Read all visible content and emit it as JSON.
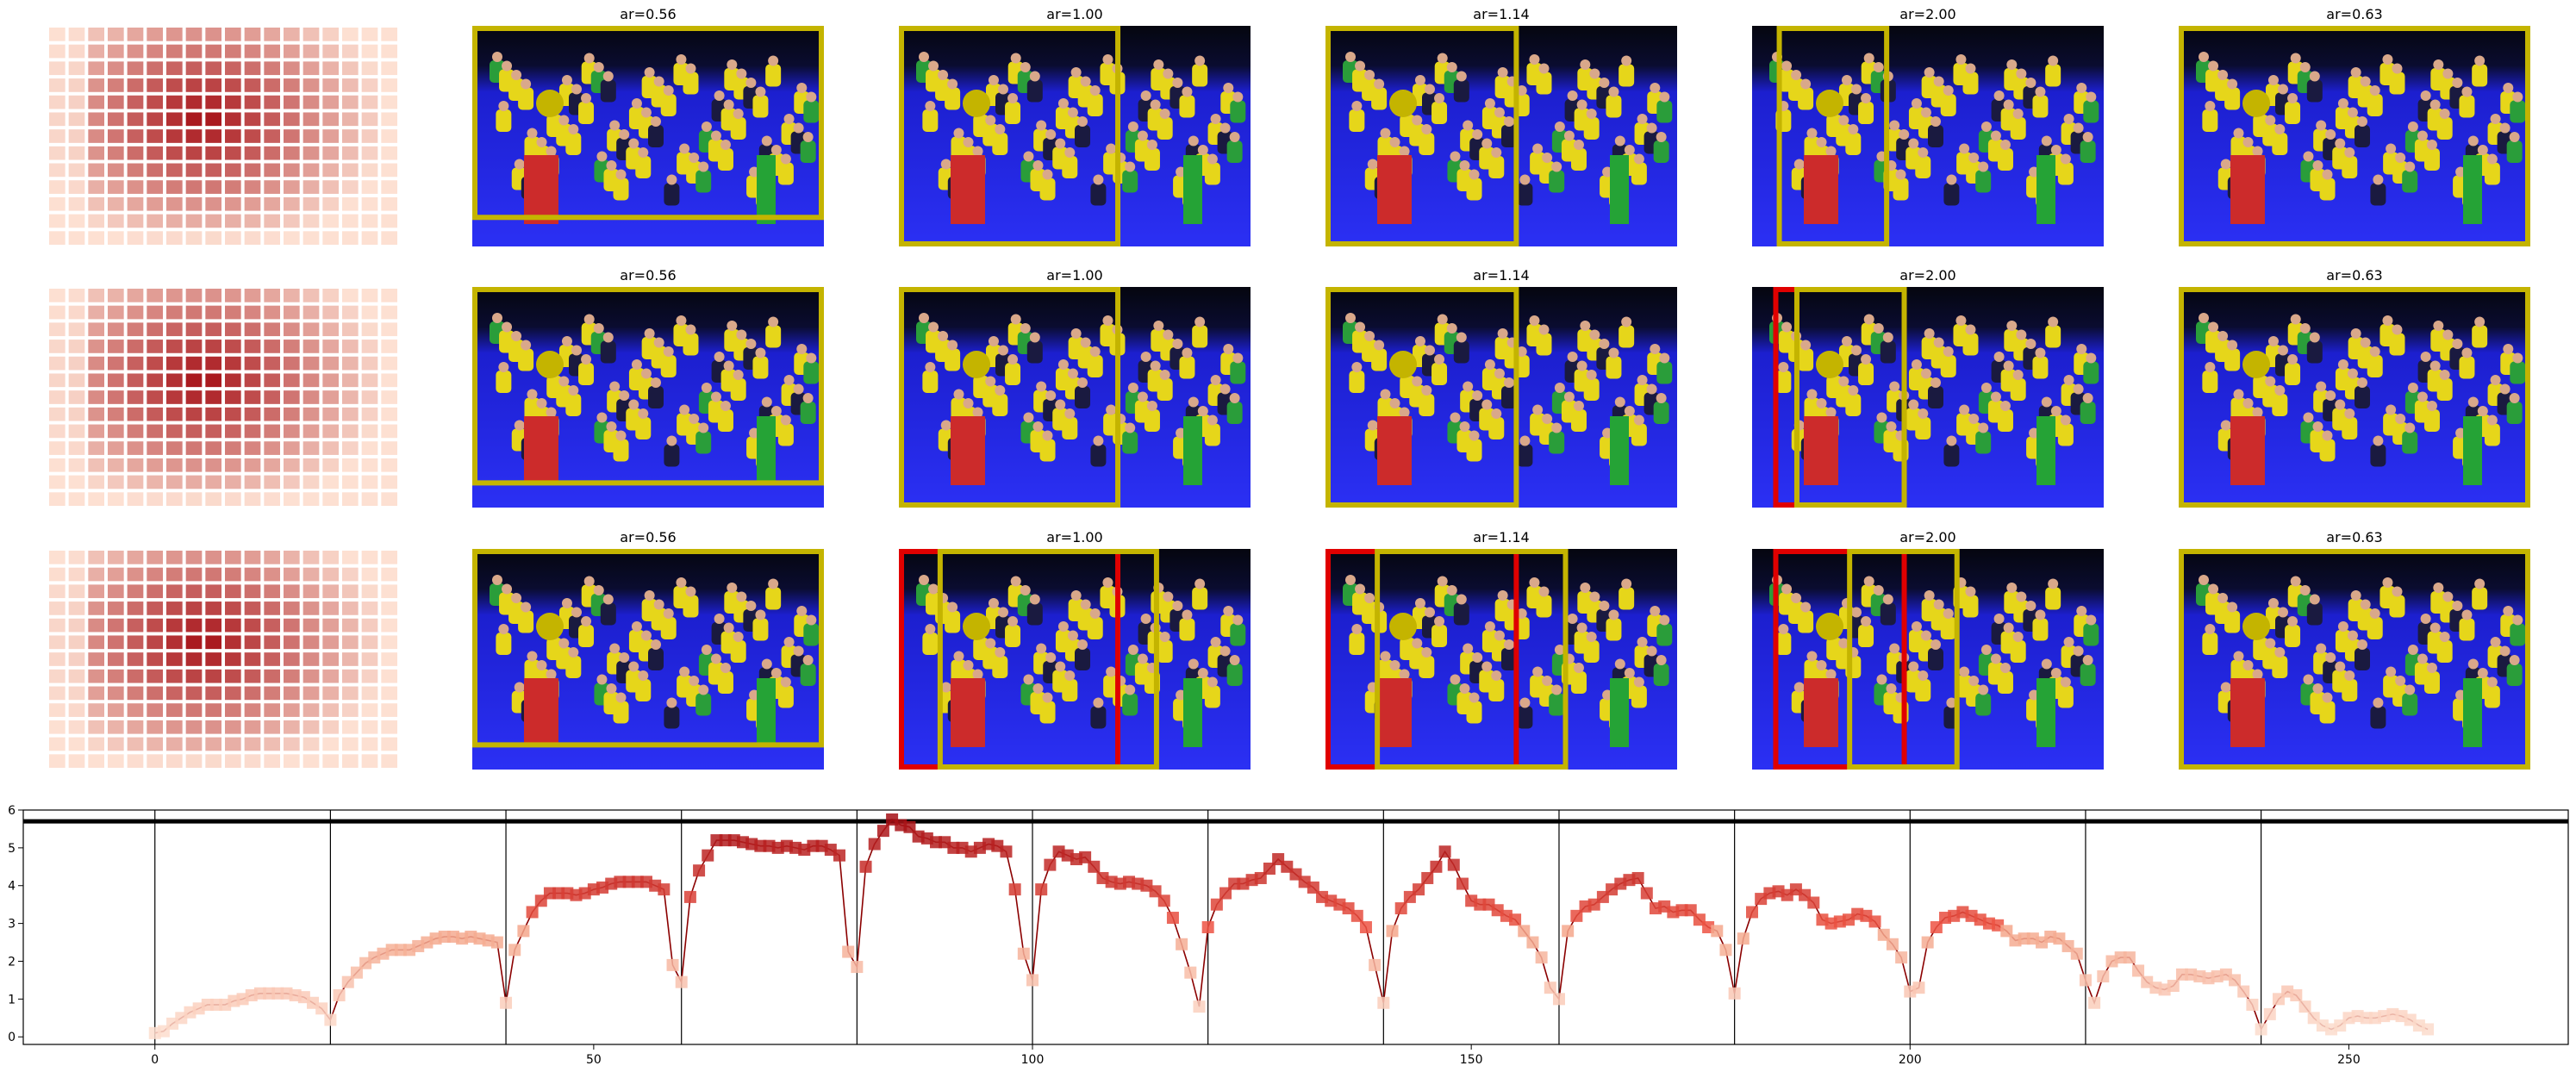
{
  "colors": {
    "box_yellow": "#c4b400",
    "box_red": "#e00000",
    "line_dark": "#8b0000",
    "marker_hi": "#b22222",
    "marker_mid": "#ee5544",
    "marker_lo": "#f4a58a",
    "heat_hi": "#a50f15",
    "heat_lo": "#fde0d2"
  },
  "grid": {
    "rows": [
      {
        "titles": [
          "ar=0.56",
          "ar=1.00",
          "ar=1.14",
          "ar=2.00",
          "ar=0.63"
        ]
      },
      {
        "titles": [
          "ar=0.56",
          "ar=1.00",
          "ar=1.14",
          "ar=2.00",
          "ar=0.63"
        ]
      },
      {
        "titles": [
          "ar=0.56",
          "ar=1.00",
          "ar=1.14",
          "ar=2.00",
          "ar=0.63"
        ]
      }
    ],
    "photo_icon": "team-photo-icon"
  },
  "chart_data": {
    "type": "line",
    "title": "",
    "xlabel": "",
    "ylabel": "",
    "xlim": [
      -15,
      275
    ],
    "ylim": [
      -0.2,
      6.0
    ],
    "xticks": [
      0,
      50,
      100,
      150,
      200,
      250
    ],
    "yticks": [
      0,
      1,
      2,
      3,
      4,
      5,
      6
    ],
    "vlines": [
      0,
      20,
      40,
      60,
      80,
      100,
      120,
      140,
      160,
      180,
      200,
      220,
      240
    ],
    "hline": 5.7,
    "series": [
      {
        "x": [
          0,
          1,
          2,
          3,
          4,
          5,
          6,
          7,
          8,
          9,
          10,
          11,
          12,
          13,
          14,
          15,
          16,
          17,
          18,
          19,
          20,
          21,
          22,
          23,
          24,
          25,
          26,
          27,
          28,
          29,
          30,
          31,
          32,
          33,
          34,
          35,
          36,
          37,
          38,
          39,
          40,
          41,
          42,
          43,
          44,
          45,
          46,
          47,
          48,
          49,
          50,
          51,
          52,
          53,
          54,
          55,
          56,
          57,
          58,
          59,
          60,
          61,
          62,
          63,
          64,
          65,
          66,
          67,
          68,
          69,
          70,
          71,
          72,
          73,
          74,
          75,
          76,
          77,
          78,
          79,
          80,
          81,
          82,
          83,
          84,
          85,
          86,
          87,
          88,
          89,
          90,
          91,
          92,
          93,
          94,
          95,
          96,
          97,
          98,
          99,
          100,
          101,
          102,
          103,
          104,
          105,
          106,
          107,
          108,
          109,
          110,
          111,
          112,
          113,
          114,
          115,
          116,
          117,
          118,
          119,
          120,
          121,
          122,
          123,
          124,
          125,
          126,
          127,
          128,
          129,
          130,
          131,
          132,
          133,
          134,
          135,
          136,
          137,
          138,
          139,
          140,
          141,
          142,
          143,
          144,
          145,
          146,
          147,
          148,
          149,
          150,
          151,
          152,
          153,
          154,
          155,
          156,
          157,
          158,
          159,
          160,
          161,
          162,
          163,
          164,
          165,
          166,
          167,
          168,
          169,
          170,
          171,
          172,
          173,
          174,
          175,
          176,
          177,
          178,
          179,
          180,
          181,
          182,
          183,
          184,
          185,
          186,
          187,
          188,
          189,
          190,
          191,
          192,
          193,
          194,
          195,
          196,
          197,
          198,
          199,
          200,
          201,
          202,
          203,
          204,
          205,
          206,
          207,
          208,
          209,
          210,
          211,
          212,
          213,
          214,
          215,
          216,
          217,
          218,
          219,
          220,
          221,
          222,
          223,
          224,
          225,
          226,
          227,
          228,
          229,
          230,
          231,
          232,
          233,
          234,
          235,
          236,
          237,
          238,
          239,
          240,
          241,
          242,
          243,
          244,
          245,
          246,
          247,
          248,
          249,
          250,
          251,
          252,
          253,
          254,
          255,
          256,
          257,
          258,
          259
        ],
        "y": [
          0.1,
          0.15,
          0.35,
          0.5,
          0.65,
          0.75,
          0.85,
          0.85,
          0.85,
          0.95,
          1.0,
          1.1,
          1.15,
          1.15,
          1.15,
          1.15,
          1.1,
          1.05,
          0.9,
          0.75,
          0.45,
          1.1,
          1.45,
          1.7,
          1.95,
          2.1,
          2.2,
          2.3,
          2.3,
          2.3,
          2.4,
          2.5,
          2.6,
          2.65,
          2.65,
          2.6,
          2.65,
          2.6,
          2.55,
          2.5,
          0.9,
          2.3,
          2.8,
          3.3,
          3.6,
          3.8,
          3.8,
          3.8,
          3.75,
          3.8,
          3.9,
          3.95,
          4.05,
          4.1,
          4.1,
          4.1,
          4.1,
          4.0,
          3.9,
          1.9,
          1.45,
          3.7,
          4.4,
          4.8,
          5.2,
          5.2,
          5.2,
          5.15,
          5.1,
          5.05,
          5.05,
          5.0,
          5.05,
          5.0,
          4.95,
          5.05,
          5.05,
          4.95,
          4.8,
          2.25,
          1.85,
          4.5,
          5.1,
          5.45,
          5.75,
          5.6,
          5.55,
          5.3,
          5.25,
          5.15,
          5.15,
          5.0,
          5.0,
          4.9,
          5.0,
          5.1,
          5.05,
          4.9,
          3.9,
          2.2,
          1.5,
          3.9,
          4.55,
          4.9,
          4.8,
          4.7,
          4.75,
          4.5,
          4.2,
          4.1,
          4.05,
          4.1,
          4.05,
          4.0,
          3.85,
          3.6,
          3.15,
          2.45,
          1.7,
          0.8,
          2.9,
          3.5,
          3.8,
          4.05,
          4.05,
          4.15,
          4.2,
          4.45,
          4.7,
          4.5,
          4.3,
          4.1,
          3.95,
          3.7,
          3.6,
          3.5,
          3.4,
          3.2,
          2.9,
          1.9,
          0.9,
          2.8,
          3.4,
          3.7,
          3.9,
          4.2,
          4.5,
          4.9,
          4.55,
          4.05,
          3.6,
          3.5,
          3.5,
          3.35,
          3.2,
          3.1,
          2.8,
          2.5,
          2.1,
          1.3,
          1.0,
          2.8,
          3.2,
          3.45,
          3.5,
          3.7,
          3.9,
          4.05,
          4.15,
          4.2,
          3.8,
          3.4,
          3.45,
          3.3,
          3.35,
          3.35,
          3.1,
          2.9,
          2.8,
          2.3,
          1.15,
          2.6,
          3.3,
          3.65,
          3.8,
          3.85,
          3.75,
          3.9,
          3.75,
          3.55,
          3.1,
          3.0,
          3.05,
          3.1,
          3.25,
          3.2,
          3.05,
          2.7,
          2.45,
          2.1,
          1.2,
          1.3,
          2.5,
          2.9,
          3.15,
          3.2,
          3.3,
          3.2,
          3.1,
          3.0,
          2.95,
          2.8,
          2.55,
          2.6,
          2.6,
          2.5,
          2.65,
          2.6,
          2.4,
          2.2,
          1.5,
          0.9,
          1.6,
          2.0,
          2.1,
          2.1,
          1.75,
          1.45,
          1.3,
          1.25,
          1.35,
          1.65,
          1.65,
          1.6,
          1.55,
          1.6,
          1.65,
          1.5,
          1.2,
          0.85,
          0.2,
          0.6,
          1.0,
          1.2,
          1.1,
          0.8,
          0.5,
          0.3,
          0.2,
          0.3,
          0.5,
          0.55,
          0.5,
          0.5,
          0.55,
          0.6,
          0.55,
          0.45,
          0.3,
          0.2
        ]
      }
    ]
  }
}
